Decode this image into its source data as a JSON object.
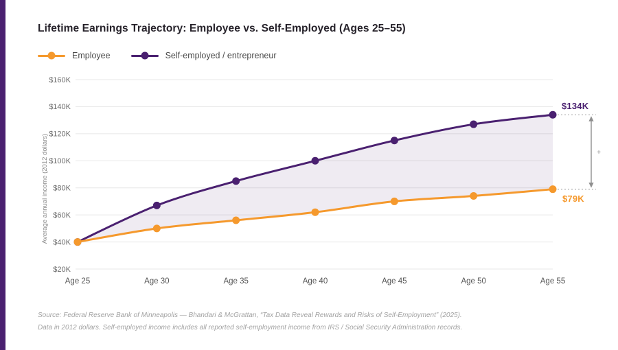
{
  "accent_color": "#4A2070",
  "title": "Lifetime Earnings Trajectory: Employee vs. Self-Employed (Ages 25–55)",
  "legend": {
    "items": [
      {
        "label": "Employee",
        "color": "#F5992D"
      },
      {
        "label": "Self-employed / entrepreneur",
        "color": "#4A2070"
      }
    ]
  },
  "chart_data": {
    "type": "line",
    "title": "Lifetime Earnings Trajectory: Employee vs. Self-Employed (Ages 25–55)",
    "x": [
      "Age 25",
      "Age 30",
      "Age 35",
      "Age 40",
      "Age 45",
      "Age 50",
      "Age 55"
    ],
    "series": [
      {
        "name": "Employee",
        "color": "#F5992D",
        "values": [
          40,
          50,
          56,
          62,
          70,
          74,
          79
        ]
      },
      {
        "name": "Self-employed / entrepreneur",
        "color": "#4A2070",
        "values": [
          40,
          67,
          85,
          100,
          115,
          127,
          134
        ]
      }
    ],
    "ylabel": "Average annual income (2012 dollars)",
    "xlabel": "",
    "yticks": [
      "$20K",
      "$40K",
      "$60K",
      "$80K",
      "$100K",
      "$120K",
      "$140K",
      "$160K"
    ],
    "ytick_values": [
      20,
      40,
      60,
      80,
      100,
      120,
      140,
      160
    ],
    "ylim": [
      20,
      160
    ],
    "grid": "horizontal",
    "fill_between_series": true,
    "fill_color": "rgba(74,32,112,0.09)",
    "legend_position": "top-left",
    "annotations": {
      "top_label": "$134K",
      "bottom_label": "$79K",
      "gap_symbol": "+"
    }
  },
  "source": {
    "line1": "Source: Federal Reserve Bank of Minneapolis — Bhandari & McGrattan, “Tax Data Reveal Rewards and Risks of Self-Employment” (2025).",
    "line2": "Data in 2012 dollars. Self-employed income includes all reported self-employment income from IRS / Social Security Administration records."
  }
}
